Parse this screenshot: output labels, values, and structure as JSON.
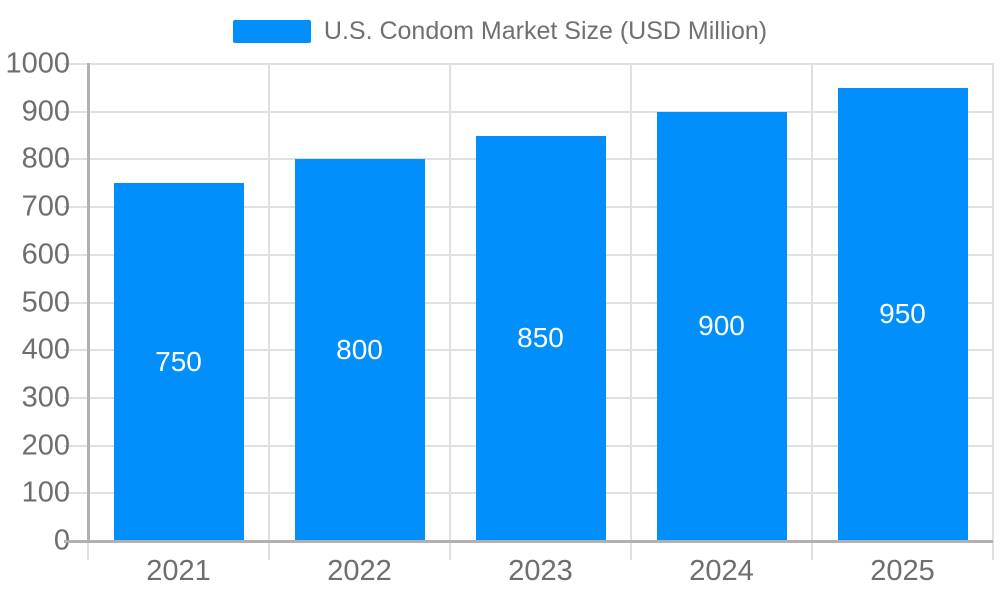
{
  "legend": {
    "label": "U.S. Condom Market Size (USD Million)",
    "swatch_color": "#008FFB"
  },
  "chart_data": {
    "type": "bar",
    "title": "U.S. Condom Market Size (USD Million)",
    "categories": [
      "2021",
      "2022",
      "2023",
      "2024",
      "2025"
    ],
    "series": [
      {
        "name": "U.S. Condom Market Size (USD Million)",
        "values": [
          750,
          800,
          850,
          900,
          950
        ]
      }
    ],
    "value_labels": [
      "750",
      "800",
      "850",
      "900",
      "950"
    ],
    "xlabel": "",
    "ylabel": "",
    "ylim": [
      0,
      1000
    ],
    "y_ticks": [
      0,
      100,
      200,
      300,
      400,
      500,
      600,
      700,
      800,
      900,
      1000
    ],
    "grid": true,
    "legend_position": "top",
    "colors": {
      "bar": "#008FFB",
      "value_label": "#ffffff",
      "axis_label": "#6e6e6e",
      "legend_text": "#707070",
      "gridline": "#e0e0e0",
      "axis_line": "#b1b1b1"
    }
  }
}
